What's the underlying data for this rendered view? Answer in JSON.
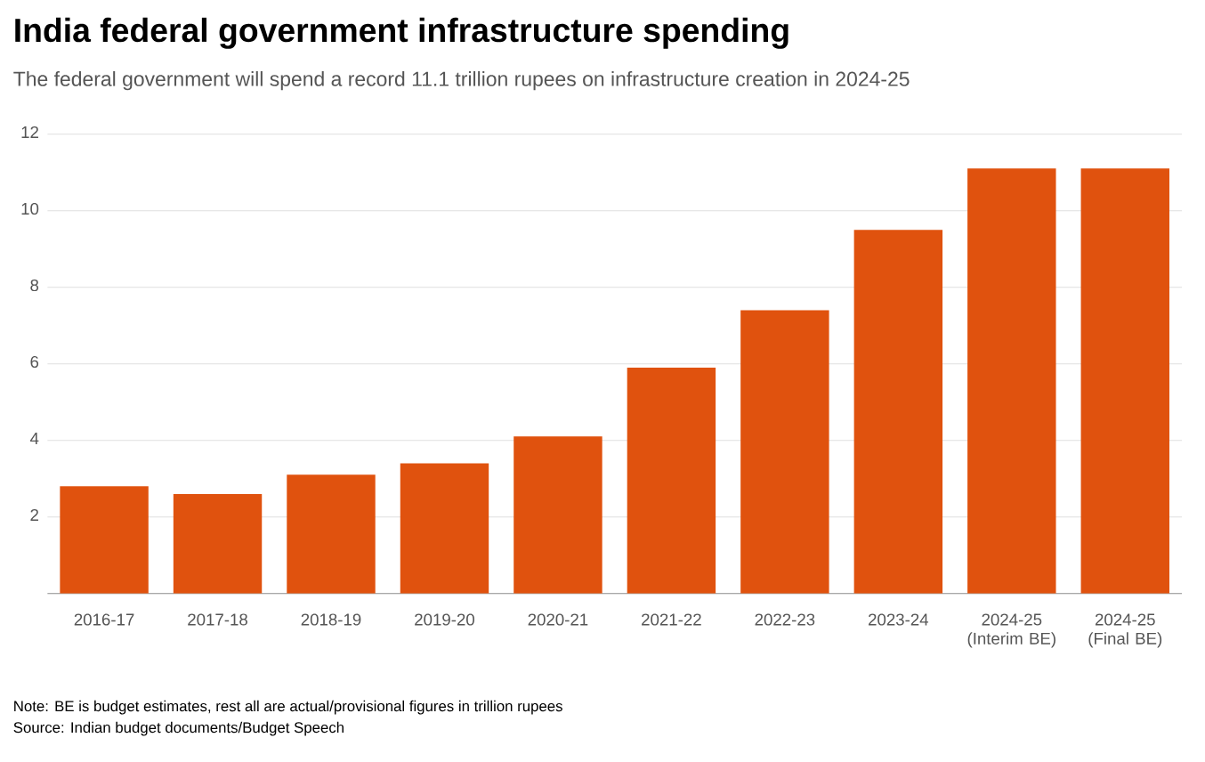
{
  "chart_data": {
    "type": "bar",
    "title": "India federal government infrastructure spending",
    "subtitle": "The federal government will spend a record 11.1 trillion rupees on infrastructure creation in 2024-25",
    "categories": [
      "2016-17",
      "2017-18",
      "2018-19",
      "2019-20",
      "2020-21",
      "2021-22",
      "2022-23",
      "2023-24",
      "2024-25 (Interim BE)",
      "2024-25 (Final BE)"
    ],
    "values": [
      2.8,
      2.6,
      3.1,
      3.4,
      4.1,
      5.9,
      7.4,
      9.5,
      11.1,
      11.1
    ],
    "color": "#e0520e",
    "ylim": [
      0,
      12
    ],
    "yticks": [
      2,
      4,
      6,
      8,
      10,
      12
    ],
    "grid": "y",
    "annotations": [
      "Note: BE is budget estimates, rest all are actual/provisional figures in trillion rupees",
      "Source: Indian budget documents/Budget Speech"
    ]
  }
}
